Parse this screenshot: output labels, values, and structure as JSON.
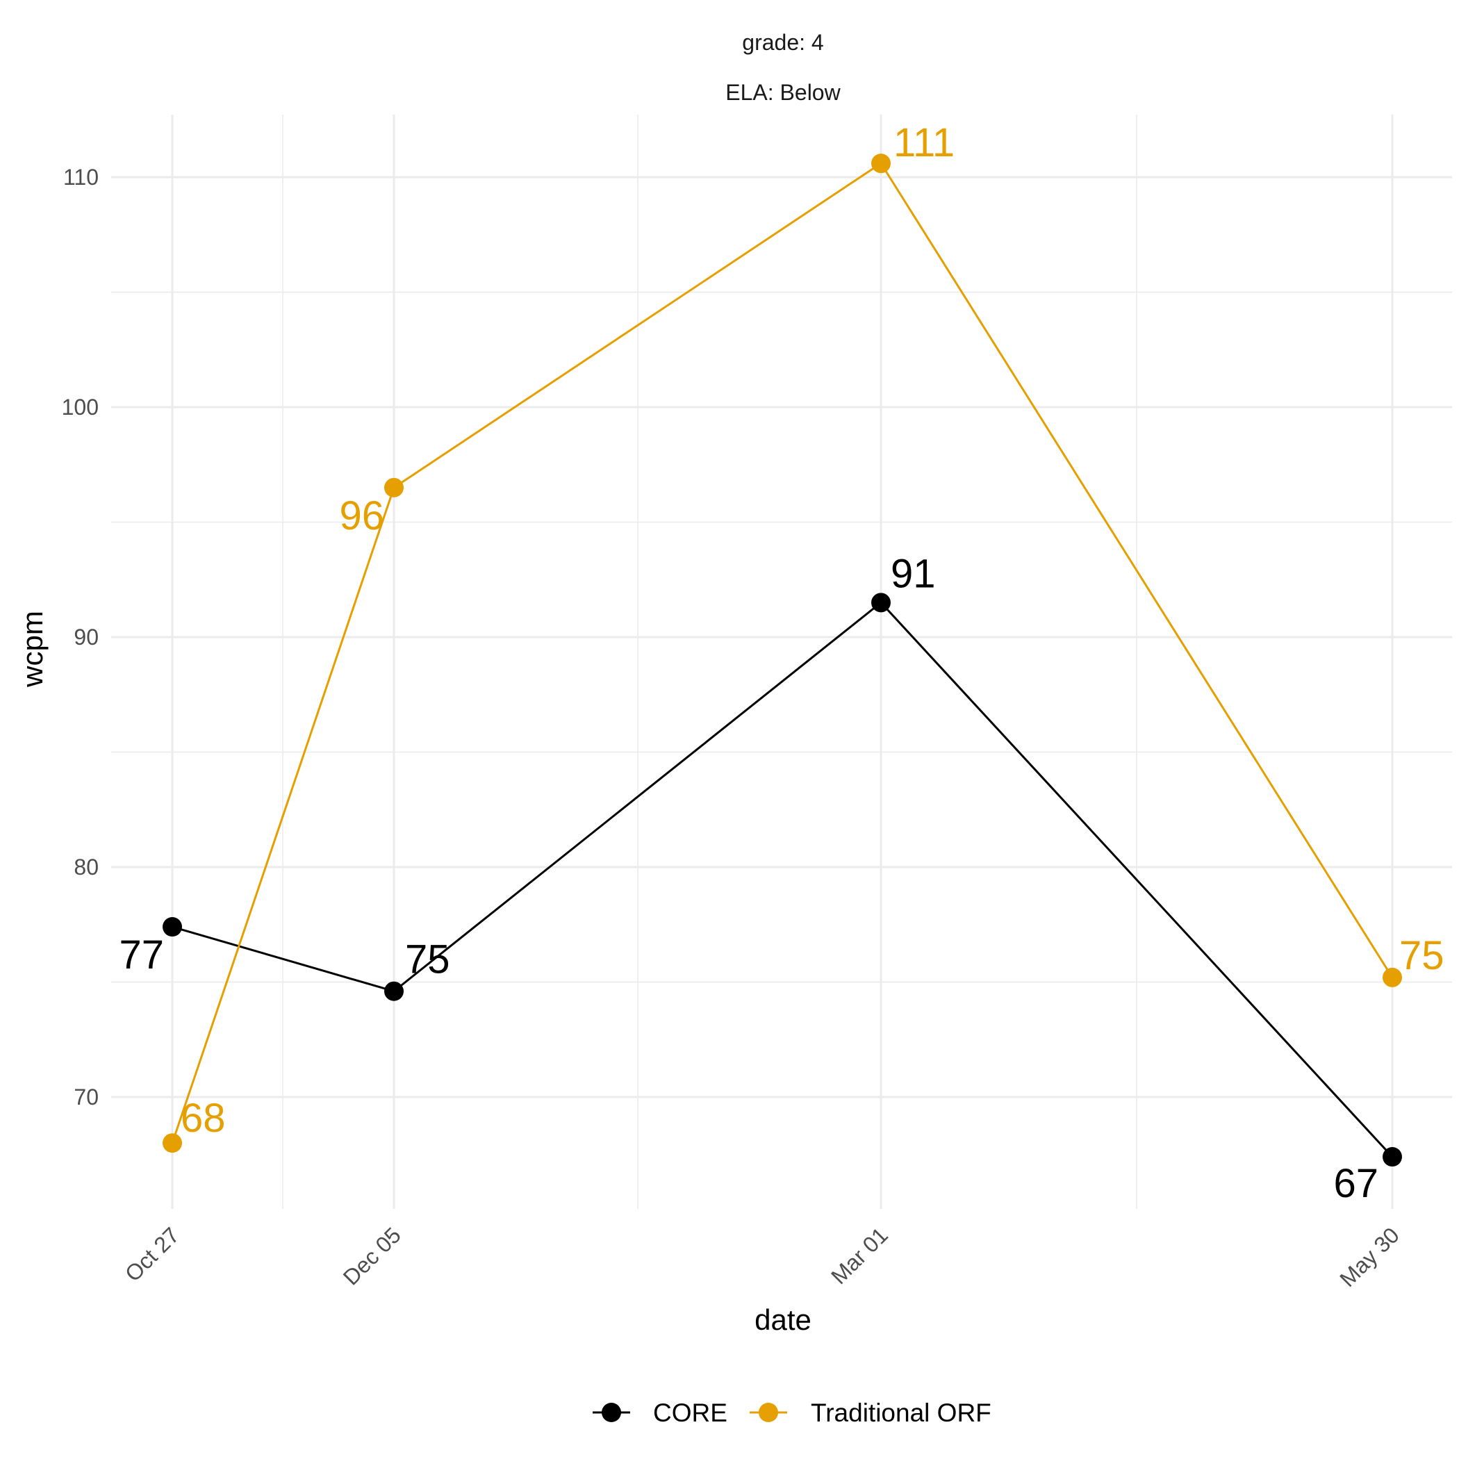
{
  "chart_data": {
    "type": "line",
    "facet_strips": [
      "grade: 4",
      "ELA: Below"
    ],
    "xlabel": "date",
    "ylabel": "wcpm",
    "x": [
      "Oct 27",
      "Dec 05",
      "Mar 01",
      "May 30"
    ],
    "yticks": [
      70,
      80,
      90,
      100,
      110
    ],
    "ylim": [
      65.3,
      112.8
    ],
    "grid": true,
    "legend_position": "bottom",
    "series": [
      {
        "name": "CORE",
        "color": "#000000",
        "values": [
          77.4,
          74.6,
          91.5,
          67.4
        ],
        "labels": [
          "77",
          "75",
          "91",
          "67"
        ]
      },
      {
        "name": "Traditional ORF",
        "color": "#E69F00",
        "values": [
          68.0,
          96.5,
          110.6,
          75.2
        ],
        "labels": [
          "68",
          "96",
          "111",
          "75"
        ]
      }
    ]
  }
}
